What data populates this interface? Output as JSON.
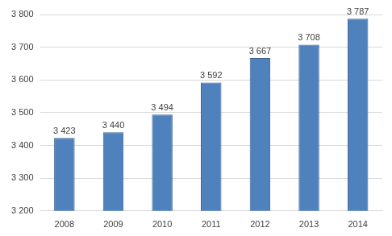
{
  "chart_data": {
    "type": "bar",
    "categories": [
      "2008",
      "2009",
      "2010",
      "2011",
      "2012",
      "2013",
      "2014"
    ],
    "values": [
      3423,
      3440,
      3494,
      3592,
      3667,
      3708,
      3787
    ],
    "value_labels": [
      "3 423",
      "3 440",
      "3 494",
      "3 592",
      "3 667",
      "3 708",
      "3 787"
    ],
    "data_labels": true,
    "color": "#4f81bd",
    "ylim": [
      3200,
      3800
    ],
    "yticks": [
      {
        "value": 3200,
        "label": "3 200"
      },
      {
        "value": 3300,
        "label": "3 300"
      },
      {
        "value": 3400,
        "label": "3 400"
      },
      {
        "value": 3500,
        "label": "3 500"
      },
      {
        "value": 3600,
        "label": "3 600"
      },
      {
        "value": 3700,
        "label": "3 700"
      },
      {
        "value": 3800,
        "label": "3 800"
      }
    ],
    "grid": true
  }
}
